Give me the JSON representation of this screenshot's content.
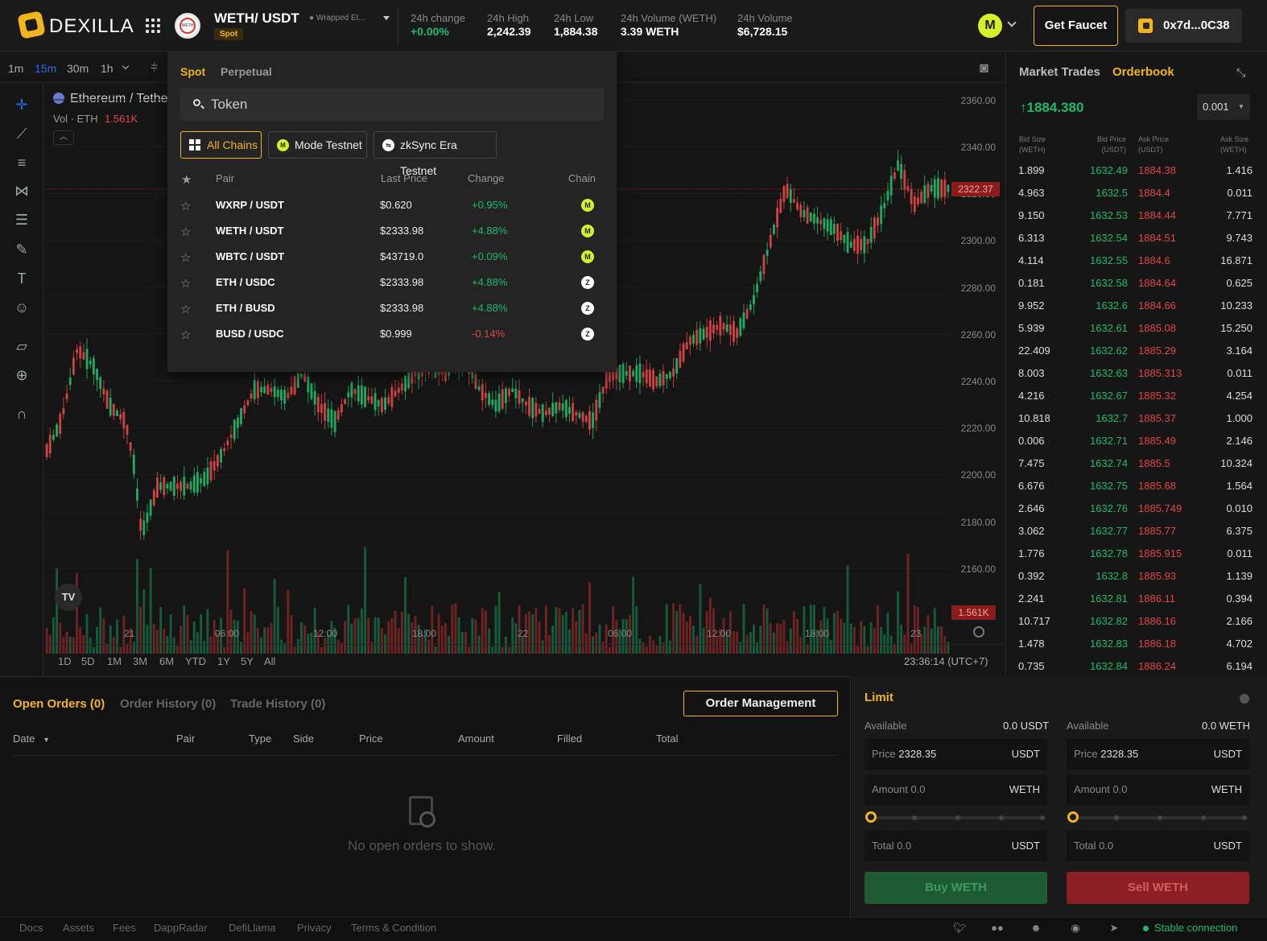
{
  "brand": {
    "name": "DEXILLA"
  },
  "header": {
    "coin_icon_label": "WETH",
    "pair_title": "WETH/ USDT",
    "pair_subtitle": "Wrapped Et...",
    "market_badge": "Spot",
    "stats": [
      {
        "label": "24h change",
        "value": "+0.00%"
      },
      {
        "label": "24h High",
        "value": "2,242.39"
      },
      {
        "label": "24h Low",
        "value": "1,884.38"
      },
      {
        "label": "24h Volume (WETH)",
        "value": "3.39 WETH"
      },
      {
        "label": "24h Volume",
        "value": "$6,728.15"
      }
    ],
    "avatar_letter": "M",
    "faucet_label": "Get Faucet",
    "wallet_address": "0x7d...0C38"
  },
  "chart": {
    "timeframes": [
      "1m",
      "15m",
      "30m",
      "1h"
    ],
    "active_timeframe": "15m",
    "symbol_label": "Ethereum / Tethe",
    "volume_label": "Vol · ETH",
    "volume_value": "1.561K",
    "last_price_tag": "2322.37",
    "volume_tag": "1.561K",
    "y_ticks": [
      "2360.00",
      "2340.00",
      "2320.00",
      "2300.00",
      "2280.00",
      "2260.00",
      "2240.00",
      "2220.00",
      "2200.00",
      "2180.00",
      "2160.00"
    ],
    "x_ticks": [
      "21",
      "06:00",
      "12:00",
      "18:00",
      "22",
      "06:00",
      "12:00",
      "18:00",
      "23"
    ],
    "ranges": [
      "1D",
      "5D",
      "1M",
      "3M",
      "6M",
      "YTD",
      "1Y",
      "5Y",
      "All"
    ],
    "clock": "23:36:14 (UTC+7)",
    "watermark": "TV",
    "accent_up": "#1fb86a",
    "accent_down": "#e04545"
  },
  "dropdown": {
    "tabs": [
      "Spot",
      "Perpetual"
    ],
    "search_placeholder": "Token",
    "chains": [
      {
        "label": "All Chains",
        "active": true,
        "icon": "grid-icon"
      },
      {
        "label": "Mode Testnet",
        "active": false,
        "icon": "mode-icon"
      },
      {
        "label": "zkSync Era Testnet",
        "active": false,
        "icon": "zksync-icon"
      }
    ],
    "columns": {
      "pair": "Pair",
      "last_price": "Last Price",
      "change": "Change",
      "chain": "Chain"
    },
    "rows": [
      {
        "pair": "WXRP / USDT",
        "price": "$0.620",
        "change": "+0.95%",
        "chain": "M"
      },
      {
        "pair": "WETH / USDT",
        "price": "$2333.98",
        "change": "+4.88%",
        "chain": "M"
      },
      {
        "pair": "WBTC / USDT",
        "price": "$43719.0",
        "change": "+0.09%",
        "chain": "M"
      },
      {
        "pair": "ETH / USDC",
        "price": "$2333.98",
        "change": "+4.88%",
        "chain": "Z"
      },
      {
        "pair": "ETH / BUSD",
        "price": "$2333.98",
        "change": "+4.88%",
        "chain": "Z"
      },
      {
        "pair": "BUSD / USDC",
        "price": "$0.999",
        "change": "-0.14%",
        "chain": "Z"
      }
    ]
  },
  "orderbook": {
    "tabs": [
      "Market Trades",
      "Orderbook"
    ],
    "last_price": "1884.380",
    "tick_size": "0.001",
    "headers": {
      "bid_size": "Bid Size",
      "bid_size_unit": "(WETH)",
      "bid_price": "Bid Price",
      "bid_price_unit": "(USDT)",
      "ask_price": "Ask Price",
      "ask_price_unit": "(USDT)",
      "ask_size": "Ask Size",
      "ask_size_unit": "(WETH)"
    },
    "rows": [
      [
        "1.899",
        "1632.49",
        "1884.38",
        "1.416"
      ],
      [
        "4.963",
        "1632.5",
        "1884.4",
        "0.011"
      ],
      [
        "9.150",
        "1632.53",
        "1884.44",
        "7.771"
      ],
      [
        "6.313",
        "1632.54",
        "1884.51",
        "9.743"
      ],
      [
        "4.114",
        "1632.55",
        "1884.6",
        "16.871"
      ],
      [
        "0.181",
        "1632.58",
        "1884.64",
        "0.625"
      ],
      [
        "9.952",
        "1632.6",
        "1884.66",
        "10.233"
      ],
      [
        "5.939",
        "1632.61",
        "1885.08",
        "15.250"
      ],
      [
        "22.409",
        "1632.62",
        "1885.29",
        "3.164"
      ],
      [
        "8.003",
        "1632.63",
        "1885.313",
        "0.011"
      ],
      [
        "4.216",
        "1632.67",
        "1885.32",
        "4.254"
      ],
      [
        "10.818",
        "1632.7",
        "1885.37",
        "1.000"
      ],
      [
        "0.006",
        "1632.71",
        "1885.49",
        "2.146"
      ],
      [
        "7.475",
        "1632.74",
        "1885.5",
        "10.324"
      ],
      [
        "6.676",
        "1632.75",
        "1885.68",
        "1.564"
      ],
      [
        "2.646",
        "1632.76",
        "1885.749",
        "0.010"
      ],
      [
        "3.062",
        "1632.77",
        "1885.77",
        "6.375"
      ],
      [
        "1.776",
        "1632.78",
        "1885.915",
        "0.011"
      ],
      [
        "0.392",
        "1632.8",
        "1885.93",
        "1.139"
      ],
      [
        "2.241",
        "1632.81",
        "1886.11",
        "0.394"
      ],
      [
        "10.717",
        "1632.82",
        "1886.16",
        "2.166"
      ],
      [
        "1.478",
        "1632.83",
        "1886.18",
        "4.702"
      ],
      [
        "0.735",
        "1632.84",
        "1886.24",
        "6.194"
      ]
    ]
  },
  "orders": {
    "tabs": [
      "Open Orders (0)",
      "Order History (0)",
      "Trade History (0)"
    ],
    "management_label": "Order Management",
    "columns": [
      "Date",
      "Pair",
      "Type",
      "Side",
      "Price",
      "Amount",
      "Filled",
      "Total"
    ],
    "empty_text": "No open orders to show."
  },
  "trade": {
    "title": "Limit",
    "buy": {
      "available_label": "Available",
      "available_value": "0.0 USDT",
      "price_label": "Price",
      "price_value": "2328.35",
      "price_unit": "USDT",
      "amount_label": "Amount",
      "amount_value": "0.0",
      "amount_unit": "WETH",
      "total_label": "Total",
      "total_value": "0.0",
      "total_unit": "USDT",
      "slider_percent": 0,
      "button": "Buy WETH"
    },
    "sell": {
      "available_label": "Available",
      "available_value": "0.0 WETH",
      "price_label": "Price",
      "price_value": "2328.35",
      "price_unit": "USDT",
      "amount_label": "Amount",
      "amount_value": "0.0",
      "amount_unit": "WETH",
      "total_label": "Total",
      "total_value": "0.0",
      "total_unit": "USDT",
      "slider_percent": 0,
      "button": "Sell WETH"
    }
  },
  "footer": {
    "links": [
      "Docs",
      "Assets",
      "Fees",
      "DappRadar",
      "DefiLlama",
      "Privacy",
      "Terms & Condition"
    ],
    "social_icons": [
      "twitter-icon",
      "medium-icon",
      "discord-icon",
      "github-icon",
      "telegram-icon"
    ],
    "status": "Stable connection"
  }
}
